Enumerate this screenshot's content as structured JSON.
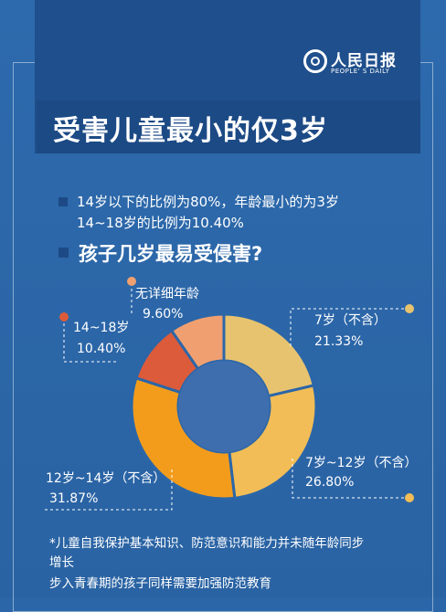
{
  "brand": {
    "name": "人民日报",
    "sub": "PEOPLE' S DAILY"
  },
  "header": {
    "title": "受害儿童最小的仅3岁"
  },
  "info": {
    "line1": "14岁以下的比例为80%，年龄最小的为3岁",
    "line2": "14~18岁的比例为10.40%"
  },
  "question": "孩子几岁最易受侵害?",
  "chart_data": {
    "type": "pie",
    "style": "donut",
    "categories": [
      "7岁（不含）",
      "7岁~12岁（不含）",
      "12岁~14岁（不含）",
      "14~18岁",
      "无详细年龄"
    ],
    "values": [
      21.33,
      26.8,
      31.87,
      10.4,
      9.6
    ],
    "value_labels": [
      "21.33%",
      "26.80%",
      "31.87%",
      "10.40%",
      "9.60%"
    ],
    "colors": [
      "#e8c36f",
      "#f2bd57",
      "#f39c1c",
      "#dc5b3a",
      "#f0a070"
    ],
    "center_color": "#3f6eae"
  },
  "footnote": {
    "line1": "*儿童自我保护基本知识、防范意识和能力并未随年龄同步",
    "line2": "增长",
    "line3": "步入青春期的孩子同样需要加强防范教育"
  }
}
